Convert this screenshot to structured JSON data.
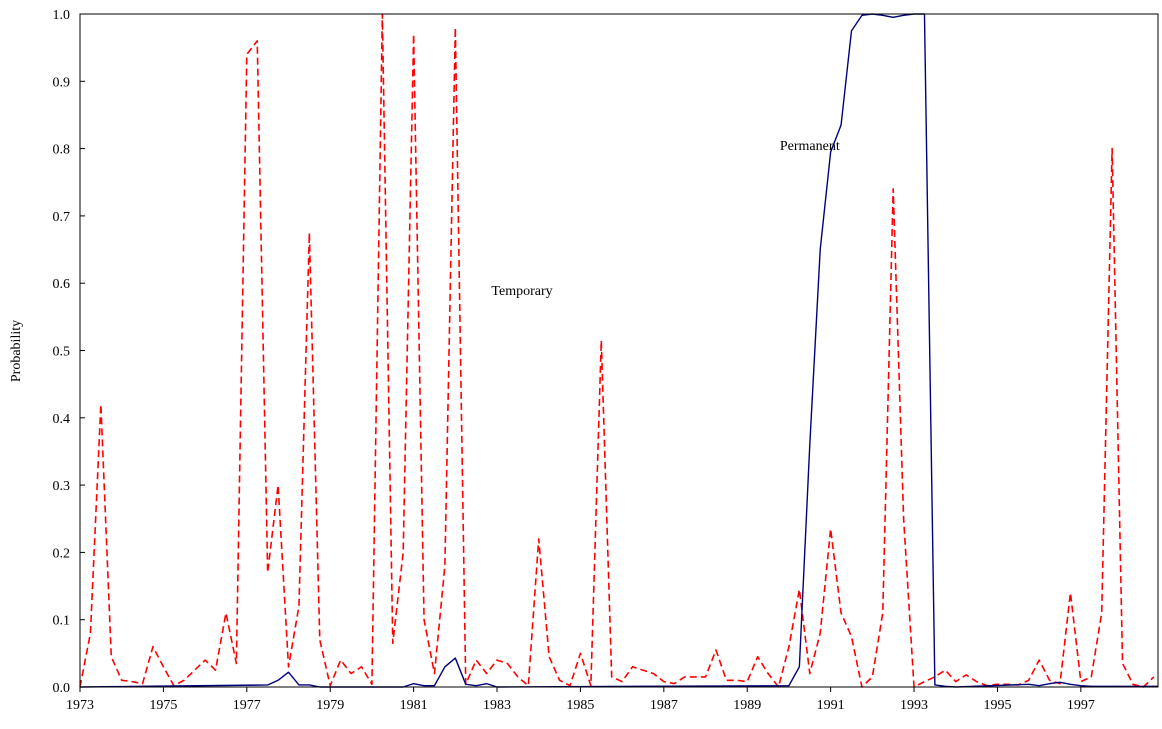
{
  "chart_data": {
    "type": "line",
    "title": "",
    "xlabel": "",
    "ylabel": "Probability",
    "xlim": [
      1973,
      1998.85
    ],
    "ylim": [
      0,
      1
    ],
    "x_ticks": [
      1973,
      1975,
      1977,
      1979,
      1981,
      1983,
      1985,
      1987,
      1989,
      1991,
      1993,
      1995,
      1997
    ],
    "x_tick_labels": [
      "1973",
      "1975",
      "1977",
      "1979",
      "1981",
      "1983",
      "1985",
      "1987",
      "1989",
      "1991",
      "1993",
      "1995",
      "1997"
    ],
    "y_ticks": [
      0,
      0.1,
      0.2,
      0.3,
      0.4,
      0.5,
      0.6,
      0.7,
      0.8,
      0.9,
      1.0
    ],
    "y_tick_labels": [
      "0.0",
      "0.1",
      "0.2",
      "0.3",
      "0.4",
      "0.5",
      "0.6",
      "0.7",
      "0.8",
      "0.9",
      "1.0"
    ],
    "grid": false,
    "legend": "none",
    "annotations": [
      {
        "text": "Temporary",
        "x": 1983.6,
        "y": 0.59
      },
      {
        "text": "Permanent",
        "x": 1990.5,
        "y": 0.805
      }
    ],
    "series": [
      {
        "style": "dashed",
        "color": "#ff0000",
        "points": [
          [
            1973.0,
            0.0
          ],
          [
            1973.25,
            0.08
          ],
          [
            1973.5,
            0.42
          ],
          [
            1973.75,
            0.045
          ],
          [
            1974.0,
            0.01
          ],
          [
            1974.25,
            0.008
          ],
          [
            1974.5,
            0.005
          ],
          [
            1974.75,
            0.06
          ],
          [
            1975.0,
            0.03
          ],
          [
            1975.25,
            0.002
          ],
          [
            1975.5,
            0.01
          ],
          [
            1975.75,
            0.025
          ],
          [
            1976.0,
            0.04
          ],
          [
            1976.25,
            0.025
          ],
          [
            1976.5,
            0.11
          ],
          [
            1976.75,
            0.035
          ],
          [
            1977.0,
            0.94
          ],
          [
            1977.25,
            0.96
          ],
          [
            1977.5,
            0.17
          ],
          [
            1977.75,
            0.3
          ],
          [
            1978.0,
            0.03
          ],
          [
            1978.25,
            0.12
          ],
          [
            1978.5,
            0.675
          ],
          [
            1978.75,
            0.07
          ],
          [
            1979.0,
            0.002
          ],
          [
            1979.25,
            0.04
          ],
          [
            1979.5,
            0.02
          ],
          [
            1979.75,
            0.03
          ],
          [
            1980.0,
            0.004
          ],
          [
            1980.25,
            1.0
          ],
          [
            1980.5,
            0.065
          ],
          [
            1980.75,
            0.2
          ],
          [
            1981.0,
            0.97
          ],
          [
            1981.25,
            0.1
          ],
          [
            1981.5,
            0.02
          ],
          [
            1981.75,
            0.18
          ],
          [
            1982.0,
            0.98
          ],
          [
            1982.25,
            0.004
          ],
          [
            1982.5,
            0.04
          ],
          [
            1982.75,
            0.02
          ],
          [
            1983.0,
            0.04
          ],
          [
            1983.25,
            0.035
          ],
          [
            1983.5,
            0.015
          ],
          [
            1983.75,
            0.002
          ],
          [
            1984.0,
            0.22
          ],
          [
            1984.25,
            0.045
          ],
          [
            1984.5,
            0.01
          ],
          [
            1984.75,
            0.002
          ],
          [
            1985.0,
            0.05
          ],
          [
            1985.25,
            0.002
          ],
          [
            1985.5,
            0.515
          ],
          [
            1985.75,
            0.015
          ],
          [
            1986.0,
            0.008
          ],
          [
            1986.25,
            0.03
          ],
          [
            1986.5,
            0.025
          ],
          [
            1986.75,
            0.02
          ],
          [
            1987.0,
            0.008
          ],
          [
            1987.25,
            0.005
          ],
          [
            1987.5,
            0.015
          ],
          [
            1987.75,
            0.015
          ],
          [
            1988.0,
            0.015
          ],
          [
            1988.25,
            0.055
          ],
          [
            1988.5,
            0.01
          ],
          [
            1988.75,
            0.01
          ],
          [
            1989.0,
            0.008
          ],
          [
            1989.25,
            0.045
          ],
          [
            1989.5,
            0.02
          ],
          [
            1989.75,
            0.0
          ],
          [
            1990.0,
            0.06
          ],
          [
            1990.25,
            0.145
          ],
          [
            1990.5,
            0.02
          ],
          [
            1990.75,
            0.08
          ],
          [
            1991.0,
            0.235
          ],
          [
            1991.25,
            0.11
          ],
          [
            1991.5,
            0.075
          ],
          [
            1991.75,
            0.0
          ],
          [
            1992.0,
            0.015
          ],
          [
            1992.25,
            0.11
          ],
          [
            1992.5,
            0.74
          ],
          [
            1992.75,
            0.25
          ],
          [
            1993.0,
            0.0
          ],
          [
            1993.25,
            0.008
          ],
          [
            1993.5,
            0.015
          ],
          [
            1993.75,
            0.025
          ],
          [
            1994.0,
            0.008
          ],
          [
            1994.25,
            0.018
          ],
          [
            1994.5,
            0.008
          ],
          [
            1994.75,
            0.002
          ],
          [
            1995.0,
            0.004
          ],
          [
            1995.25,
            0.004
          ],
          [
            1995.5,
            0.003
          ],
          [
            1995.75,
            0.01
          ],
          [
            1996.0,
            0.04
          ],
          [
            1996.25,
            0.01
          ],
          [
            1996.5,
            0.005
          ],
          [
            1996.75,
            0.14
          ],
          [
            1997.0,
            0.008
          ],
          [
            1997.25,
            0.015
          ],
          [
            1997.5,
            0.11
          ],
          [
            1997.75,
            0.8
          ],
          [
            1998.0,
            0.035
          ],
          [
            1998.25,
            0.004
          ],
          [
            1998.5,
            0.0
          ],
          [
            1998.75,
            0.015
          ]
        ]
      },
      {
        "style": "solid",
        "color": "#00007a",
        "points": [
          [
            1973.0,
            0.0
          ],
          [
            1977.5,
            0.003
          ],
          [
            1977.75,
            0.01
          ],
          [
            1978.0,
            0.022
          ],
          [
            1978.25,
            0.003
          ],
          [
            1978.5,
            0.003
          ],
          [
            1978.75,
            0.0
          ],
          [
            1980.75,
            0.0
          ],
          [
            1981.0,
            0.005
          ],
          [
            1981.25,
            0.002
          ],
          [
            1981.5,
            0.002
          ],
          [
            1981.75,
            0.03
          ],
          [
            1982.0,
            0.043
          ],
          [
            1982.25,
            0.004
          ],
          [
            1982.5,
            0.002
          ],
          [
            1982.75,
            0.005
          ],
          [
            1983.0,
            0.0
          ],
          [
            1990.0,
            0.002
          ],
          [
            1990.25,
            0.03
          ],
          [
            1990.5,
            0.36
          ],
          [
            1990.75,
            0.65
          ],
          [
            1991.0,
            0.795
          ],
          [
            1991.25,
            0.835
          ],
          [
            1991.5,
            0.975
          ],
          [
            1991.75,
            0.998
          ],
          [
            1992.0,
            1.0
          ],
          [
            1992.25,
            0.998
          ],
          [
            1992.5,
            0.995
          ],
          [
            1992.75,
            0.998
          ],
          [
            1993.0,
            1.0
          ],
          [
            1993.25,
            1.0
          ],
          [
            1993.5,
            0.003
          ],
          [
            1993.75,
            0.001
          ],
          [
            1994.0,
            0.0
          ],
          [
            1995.75,
            0.004
          ],
          [
            1996.0,
            0.002
          ],
          [
            1996.25,
            0.005
          ],
          [
            1996.5,
            0.007
          ],
          [
            1996.75,
            0.004
          ],
          [
            1997.0,
            0.002
          ],
          [
            1997.25,
            0.001
          ],
          [
            1998.85,
            0.001
          ]
        ]
      }
    ]
  }
}
